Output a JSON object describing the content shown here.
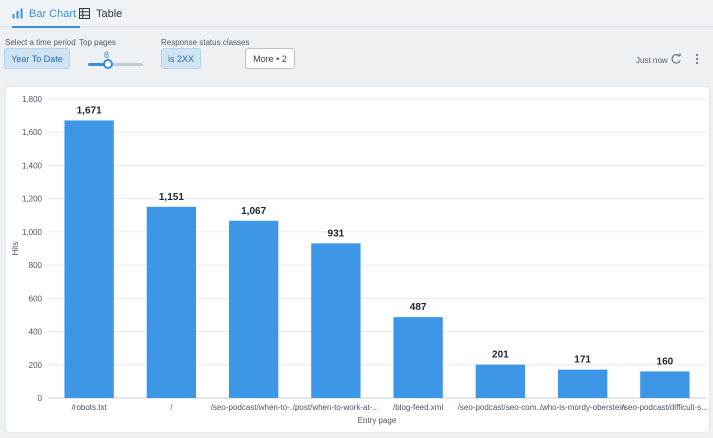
{
  "tabs": [
    {
      "label": "Bar Chart",
      "icon": "bar-chart-icon",
      "active": true
    },
    {
      "label": "Table",
      "icon": "table-icon",
      "active": false
    }
  ],
  "controls": {
    "time_period_label": "Select a time period",
    "time_period_value": "Year To Date",
    "top_pages_label": "Top pages",
    "top_pages_value": "8",
    "status_label": "Response status classes",
    "status_value": "is 2XX",
    "more_label": "More • 2",
    "updated_text": "Just now"
  },
  "icons": {
    "refresh": "refresh-icon",
    "menu": "kebab-menu-icon"
  },
  "colors": {
    "accent": "#3b8fd9",
    "bar": "#3d97e6"
  },
  "chart_data": {
    "type": "bar",
    "categories": [
      "/robots.txt",
      "/",
      "/seo-podcast/when-to-...",
      "/post/when-to-work-at-...",
      "/blog-feed.xml",
      "/seo-podcast/seo-com...",
      "/who-is-mordy-oberstein",
      "/seo-podcast/difficult-s..."
    ],
    "values": [
      1671,
      1151,
      1067,
      931,
      487,
      201,
      171,
      160
    ],
    "value_labels": [
      "1,671",
      "1,151",
      "1,067",
      "931",
      "487",
      "201",
      "171",
      "160"
    ],
    "xlabel": "Entry page",
    "ylabel": "Hits",
    "ylim": [
      0,
      1800
    ],
    "yticks": [
      0,
      200,
      400,
      600,
      800,
      1000,
      1200,
      1400,
      1600,
      1800
    ],
    "ytick_labels": [
      "0",
      "200",
      "400",
      "600",
      "800",
      "1,000",
      "1,200",
      "1,400",
      "1,600",
      "1,800"
    ],
    "grid": true
  }
}
